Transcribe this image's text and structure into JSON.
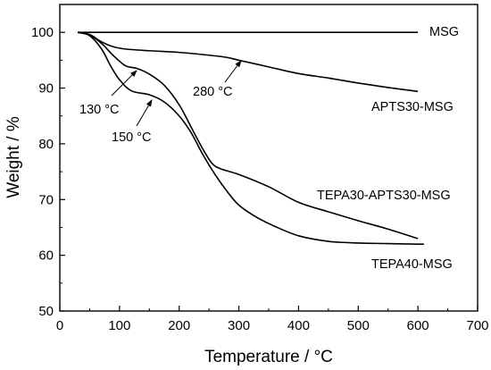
{
  "chart_data": {
    "type": "line",
    "xlabel": "Temperature / °C",
    "ylabel": "Weight / %",
    "xlim": [
      0,
      700
    ],
    "ylim": [
      50,
      105
    ],
    "x_ticks": [
      0,
      100,
      200,
      300,
      400,
      500,
      600,
      700
    ],
    "y_ticks": [
      50,
      60,
      70,
      80,
      90,
      100
    ],
    "grid": false,
    "legend": "none",
    "series": [
      {
        "name": "MSG",
        "x": [
          30,
          100,
          200,
          300,
          400,
          500,
          600
        ],
        "y": [
          100,
          100,
          100,
          100,
          100,
          100,
          100
        ]
      },
      {
        "name": "APTS30-MSG",
        "x": [
          30,
          50,
          70,
          90,
          110,
          150,
          200,
          250,
          280,
          300,
          350,
          400,
          450,
          500,
          550,
          600
        ],
        "y": [
          100,
          99.6,
          98.3,
          97.4,
          97.0,
          96.7,
          96.4,
          95.9,
          95.5,
          95.0,
          93.8,
          92.6,
          91.8,
          90.9,
          90.1,
          89.4
        ]
      },
      {
        "name": "TEPA30-APTS30-MSG",
        "x": [
          30,
          50,
          70,
          90,
          110,
          130,
          150,
          175,
          200,
          220,
          240,
          255,
          270,
          300,
          350,
          400,
          450,
          500,
          550,
          600
        ],
        "y": [
          100,
          99.5,
          98.0,
          95.8,
          94.0,
          93.5,
          92.5,
          90.5,
          87.0,
          83.0,
          79.0,
          76.5,
          75.5,
          74.5,
          72.3,
          69.5,
          67.8,
          66.2,
          64.7,
          63.0
        ]
      },
      {
        "name": "TEPA40-MSG",
        "x": [
          30,
          50,
          70,
          85,
          100,
          120,
          150,
          175,
          200,
          220,
          240,
          260,
          280,
          300,
          330,
          360,
          400,
          450,
          500,
          550,
          600,
          610
        ],
        "y": [
          100,
          99.4,
          97.0,
          94.0,
          91.5,
          89.5,
          88.8,
          87.5,
          85.0,
          82.0,
          78.0,
          74.5,
          71.5,
          69.0,
          66.8,
          65.2,
          63.5,
          62.5,
          62.2,
          62.1,
          62.0,
          62.0
        ]
      }
    ],
    "series_labels": [
      "MSG",
      "APTS30-MSG",
      "TEPA30-APTS30-MSG",
      "TEPA40-MSG"
    ],
    "annotations": [
      {
        "text": "130 °C",
        "x": 130,
        "y": 93.5,
        "series": "TEPA30-APTS30-MSG"
      },
      {
        "text": "150 °C",
        "x": 150,
        "y": 88.8,
        "series": "TEPA40-MSG"
      },
      {
        "text": "280 °C",
        "x": 280,
        "y": 95.5,
        "series": "APTS30-MSG"
      }
    ],
    "colors": {
      "line": "#000000",
      "background": "#ffffff"
    }
  }
}
